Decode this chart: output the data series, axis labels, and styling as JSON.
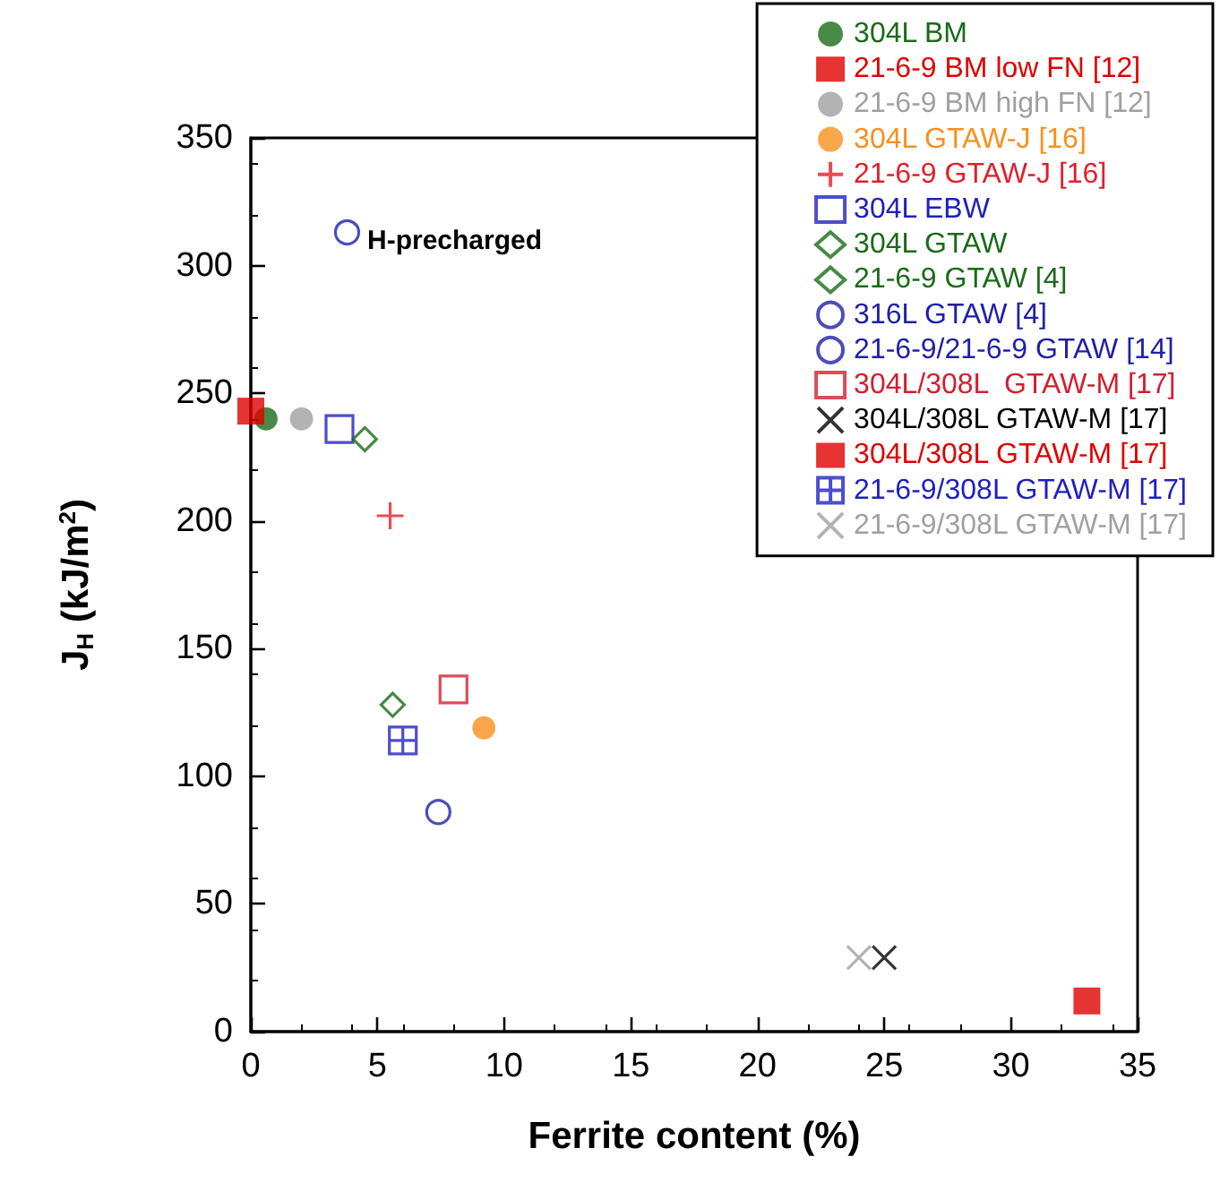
{
  "chart_data": {
    "type": "scatter",
    "xlabel": "Ferrite content (%)",
    "ylabel": "J$_{H}$ (kJ/m$^{2}$)",
    "annotations": [
      "H-precharged"
    ],
    "xlim": [
      0,
      35
    ],
    "xticks": [
      0,
      5,
      10,
      15,
      20,
      25,
      30,
      35
    ],
    "ylim": [
      0,
      350
    ],
    "yticks": [
      0,
      50,
      100,
      150,
      200,
      250,
      300,
      350
    ],
    "grid": false,
    "legend": "top right",
    "series": [
      {
        "name": "304L BM",
        "color": "#1a6b1a",
        "marker": "circle",
        "x": [
          0.6
        ],
        "values": [
          240
        ]
      },
      {
        "name": "21-6-9 BM low FN [12]",
        "color": "#e00000",
        "marker": "square",
        "x": [
          0
        ],
        "values": [
          243
        ]
      },
      {
        "name": "21-6-9 BM high FN [12]",
        "color": "#a0a0a0",
        "marker": "circle",
        "x": [
          2
        ],
        "values": [
          240
        ]
      },
      {
        "name": "304L GTAW-J [16]",
        "color": "#f7901e",
        "marker": "circle",
        "x": [
          9.2
        ],
        "values": [
          119
        ]
      },
      {
        "name": "21-6-9 GTAW-J [16]",
        "color": "#e0202a",
        "marker": "cross",
        "x": [
          5.5
        ],
        "values": [
          202
        ]
      },
      {
        "name": "304L EBW",
        "color": "#2020c0",
        "marker": "square",
        "x": [
          3.5
        ],
        "values": [
          236
        ]
      },
      {
        "name": "304L GTAW",
        "color": "#1a6b1a",
        "marker": "diamond",
        "x": [
          4.5
        ],
        "values": [
          232
        ]
      },
      {
        "name": "21-6-9 GTAW [4]",
        "color": "#1a6b1a",
        "marker": "diamond",
        "x": [
          5.6
        ],
        "values": [
          128
        ]
      },
      {
        "name": "316L GTAW [4]",
        "color": "#2020a8",
        "marker": "circle",
        "x": [
          3.8
        ],
        "values": [
          313
        ]
      },
      {
        "name": "21-6-9/21-6-9 GTAW [14]",
        "color": "#2020a8",
        "marker": "circle",
        "x": [
          7.4
        ],
        "values": [
          86
        ]
      },
      {
        "name": "304L/308L  GTAW-M [17]",
        "color": "#d02030",
        "marker": "square",
        "x": [
          8
        ],
        "values": [
          134
        ]
      },
      {
        "name": "304L/308L GTAW-M [17]",
        "color": "#000000",
        "marker": "cross",
        "x": [
          25
        ],
        "values": [
          29
        ]
      },
      {
        "name": "304L/308L GTAW-M [17]",
        "color": "#e00000",
        "marker": "square",
        "x": [
          33
        ],
        "values": [
          12
        ]
      },
      {
        "name": "21-6-9/308L GTAW-M [17]",
        "color": "#2020c0",
        "marker": "cross",
        "x": [
          6
        ],
        "values": [
          114
        ]
      },
      {
        "name": "21-6-9/308L GTAW-M [17]",
        "color": "#a0a0a0",
        "marker": "cross",
        "x": [
          24
        ],
        "values": [
          29
        ]
      }
    ]
  }
}
